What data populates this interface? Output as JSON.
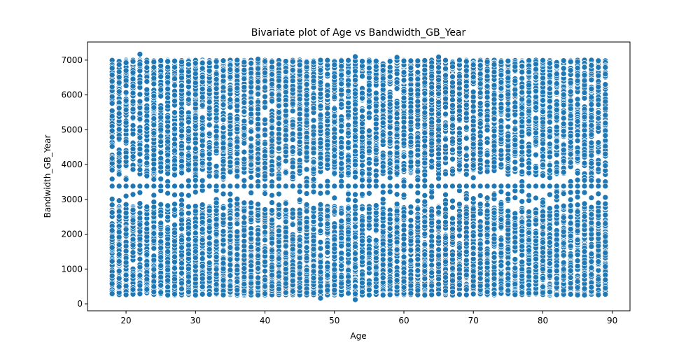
{
  "chart_data": {
    "type": "scatter",
    "title": "Bivariate plot of Age vs Bandwidth_GB_Year",
    "xlabel": "Age",
    "ylabel": "Bandwidth_GB_Year",
    "xlim": [
      14.45,
      92.55
    ],
    "ylim": [
      -200,
      7520
    ],
    "xticks": [
      20,
      30,
      40,
      50,
      60,
      70,
      80,
      90
    ],
    "yticks": [
      0,
      1000,
      2000,
      3000,
      4000,
      5000,
      6000,
      7000
    ],
    "grid": false,
    "marker_color": "#1f77b4",
    "marker_edge_color": "#ffffff",
    "x_values": [
      18,
      19,
      20,
      21,
      22,
      23,
      24,
      25,
      26,
      27,
      28,
      29,
      30,
      31,
      32,
      33,
      34,
      35,
      36,
      37,
      38,
      39,
      40,
      41,
      42,
      43,
      44,
      45,
      46,
      47,
      48,
      49,
      50,
      51,
      52,
      53,
      54,
      55,
      56,
      57,
      58,
      59,
      60,
      61,
      62,
      63,
      64,
      65,
      66,
      67,
      68,
      69,
      70,
      71,
      72,
      73,
      74,
      75,
      76,
      77,
      78,
      79,
      80,
      81,
      82,
      83,
      84,
      85,
      86,
      87,
      88,
      89
    ],
    "low_band_range": [
      250,
      2800
    ],
    "high_band_range": [
      3700,
      7000
    ],
    "middle_value": 3380,
    "notable_points": [
      {
        "x": 18,
        "y": 290
      },
      {
        "x": 22,
        "y": 7170
      },
      {
        "x": 30,
        "y": 250
      },
      {
        "x": 39,
        "y": 7030
      },
      {
        "x": 48,
        "y": 160
      },
      {
        "x": 53,
        "y": 120
      },
      {
        "x": 53,
        "y": 7100
      },
      {
        "x": 59,
        "y": 7080
      },
      {
        "x": 65,
        "y": 7090
      }
    ]
  }
}
